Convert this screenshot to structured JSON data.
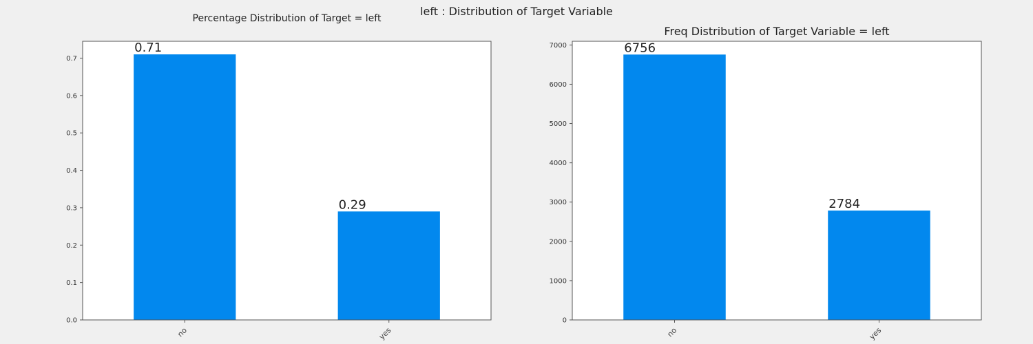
{
  "figure": {
    "suptitle": "left : Distribution of Target Variable"
  },
  "colors": {
    "bar": "#0288ee",
    "background": "#f0f0f0",
    "axes_face": "#ffffff",
    "axes_edge": "#555555"
  },
  "chart_data": [
    {
      "type": "bar",
      "title": "Percentage Distribution of Target = left",
      "categories": [
        "no",
        "yes"
      ],
      "values": [
        0.71,
        0.29
      ],
      "data_labels": [
        "0.71",
        "0.29"
      ],
      "xlabel": "",
      "ylabel": "",
      "ylim": [
        0,
        0.745
      ],
      "yticks": [
        0.0,
        0.1,
        0.2,
        0.3,
        0.4,
        0.5,
        0.6,
        0.7
      ],
      "ytick_labels": [
        "0.0",
        "0.1",
        "0.2",
        "0.3",
        "0.4",
        "0.5",
        "0.6",
        "0.7"
      ],
      "grid": false,
      "legend": "none"
    },
    {
      "type": "bar",
      "title": "Freq Distribution of Target Variable = left",
      "categories": [
        "no",
        "yes"
      ],
      "values": [
        6756,
        2784
      ],
      "data_labels": [
        "6756",
        "2784"
      ],
      "xlabel": "",
      "ylabel": "",
      "ylim": [
        0,
        7094
      ],
      "yticks": [
        0,
        1000,
        2000,
        3000,
        4000,
        5000,
        6000,
        7000
      ],
      "ytick_labels": [
        "0",
        "1000",
        "2000",
        "3000",
        "4000",
        "5000",
        "6000",
        "7000"
      ],
      "grid": false,
      "legend": "none"
    }
  ]
}
